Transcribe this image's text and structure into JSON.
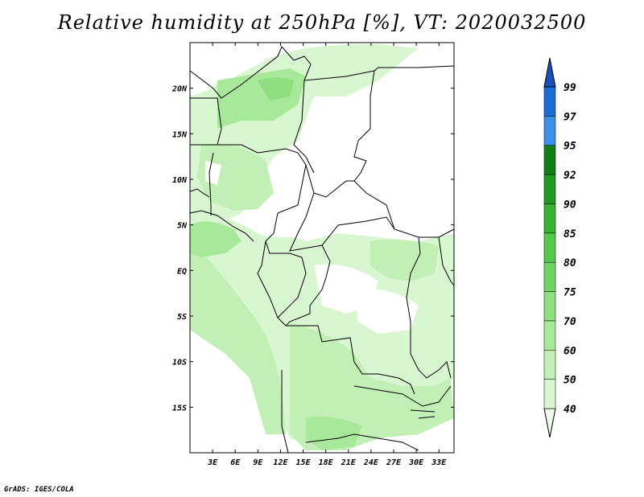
{
  "title": "Relative humidity at 250hPa [%], VT: 2020032500",
  "credit": "GrADS: IGES/COLA",
  "map": {
    "lon_range": [
      0,
      35
    ],
    "lat_range": [
      -20,
      25
    ],
    "lon_ticks": [
      "3E",
      "6E",
      "9E",
      "12E",
      "15E",
      "18E",
      "21E",
      "24E",
      "27E",
      "30E",
      "33E"
    ],
    "lat_ticks": [
      "20N",
      "15N",
      "10N",
      "5N",
      "EQ",
      "5S",
      "10S",
      "15S"
    ]
  },
  "colorbar": {
    "levels": [
      "40",
      "50",
      "60",
      "70",
      "75",
      "80",
      "85",
      "90",
      "92",
      "95",
      "97",
      "99"
    ],
    "colors": [
      "#eefbe9",
      "#d8f6cf",
      "#c2efb5",
      "#a8e89a",
      "#8fde7f",
      "#72d465",
      "#55c94c",
      "#38b334",
      "#209a22",
      "#117f14",
      "#3d8fe8",
      "#1d6cd6",
      "#1650b8"
    ]
  },
  "legend_colors": {
    "land_border": "#000000",
    "low_humidity": "#eefbe9",
    "mid_humidity": "#a8e89a",
    "high_humidity": "#72d465"
  }
}
